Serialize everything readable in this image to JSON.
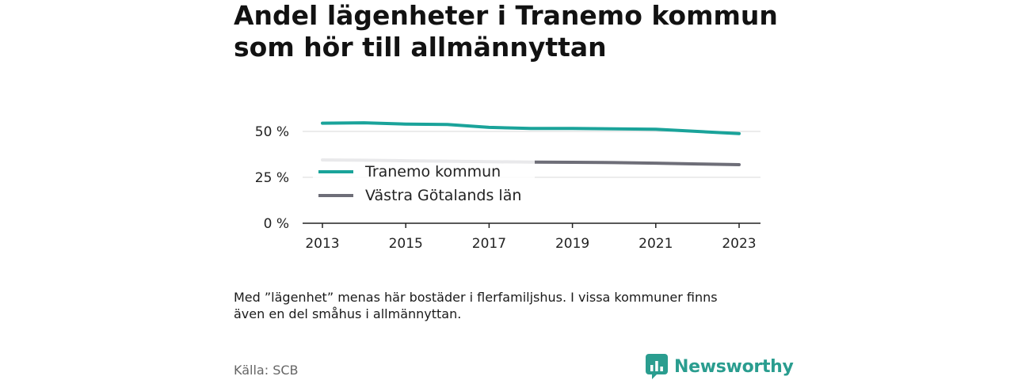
{
  "title_lines": [
    "Andel lägenheter i Tranemo kommun",
    "som hör till allmännyttan"
  ],
  "footnote_lines": [
    "Med ”lägenhet” menas här bostäder i flerfamiljshus. I vissa kommuner finns",
    "även en del småhus i allmännyttan."
  ],
  "source": "Källa: SCB",
  "brand": {
    "name": "Newsworthy",
    "logo_icon": "bar-chart-logo-icon",
    "color": "#2a9d8f"
  },
  "chart_data": {
    "type": "line",
    "title": "Andel lägenheter i Tranemo kommun som hör till allmännyttan",
    "xlabel": "",
    "ylabel": "",
    "x": [
      2013,
      2014,
      2015,
      2016,
      2017,
      2018,
      2019,
      2020,
      2021,
      2022,
      2023
    ],
    "x_ticks": [
      2013,
      2015,
      2017,
      2019,
      2021,
      2023
    ],
    "y_ticks": [
      0,
      25,
      50
    ],
    "y_tick_labels": [
      "0 %",
      "25 %",
      "50 %"
    ],
    "ylim": [
      0,
      60
    ],
    "grid": true,
    "legend_position": "left, inside plot below top line",
    "series": [
      {
        "name": "Tranemo kommun",
        "color": "#1aa39a",
        "values": [
          54.5,
          54.7,
          54.0,
          53.8,
          52.2,
          51.6,
          51.6,
          51.4,
          51.2,
          50.0,
          48.8
        ]
      },
      {
        "name": "Västra Götalands län",
        "color": "#6e6e78",
        "values": [
          34.5,
          34.3,
          34.0,
          33.8,
          33.5,
          33.3,
          33.2,
          33.0,
          32.7,
          32.3,
          31.9
        ]
      }
    ]
  }
}
